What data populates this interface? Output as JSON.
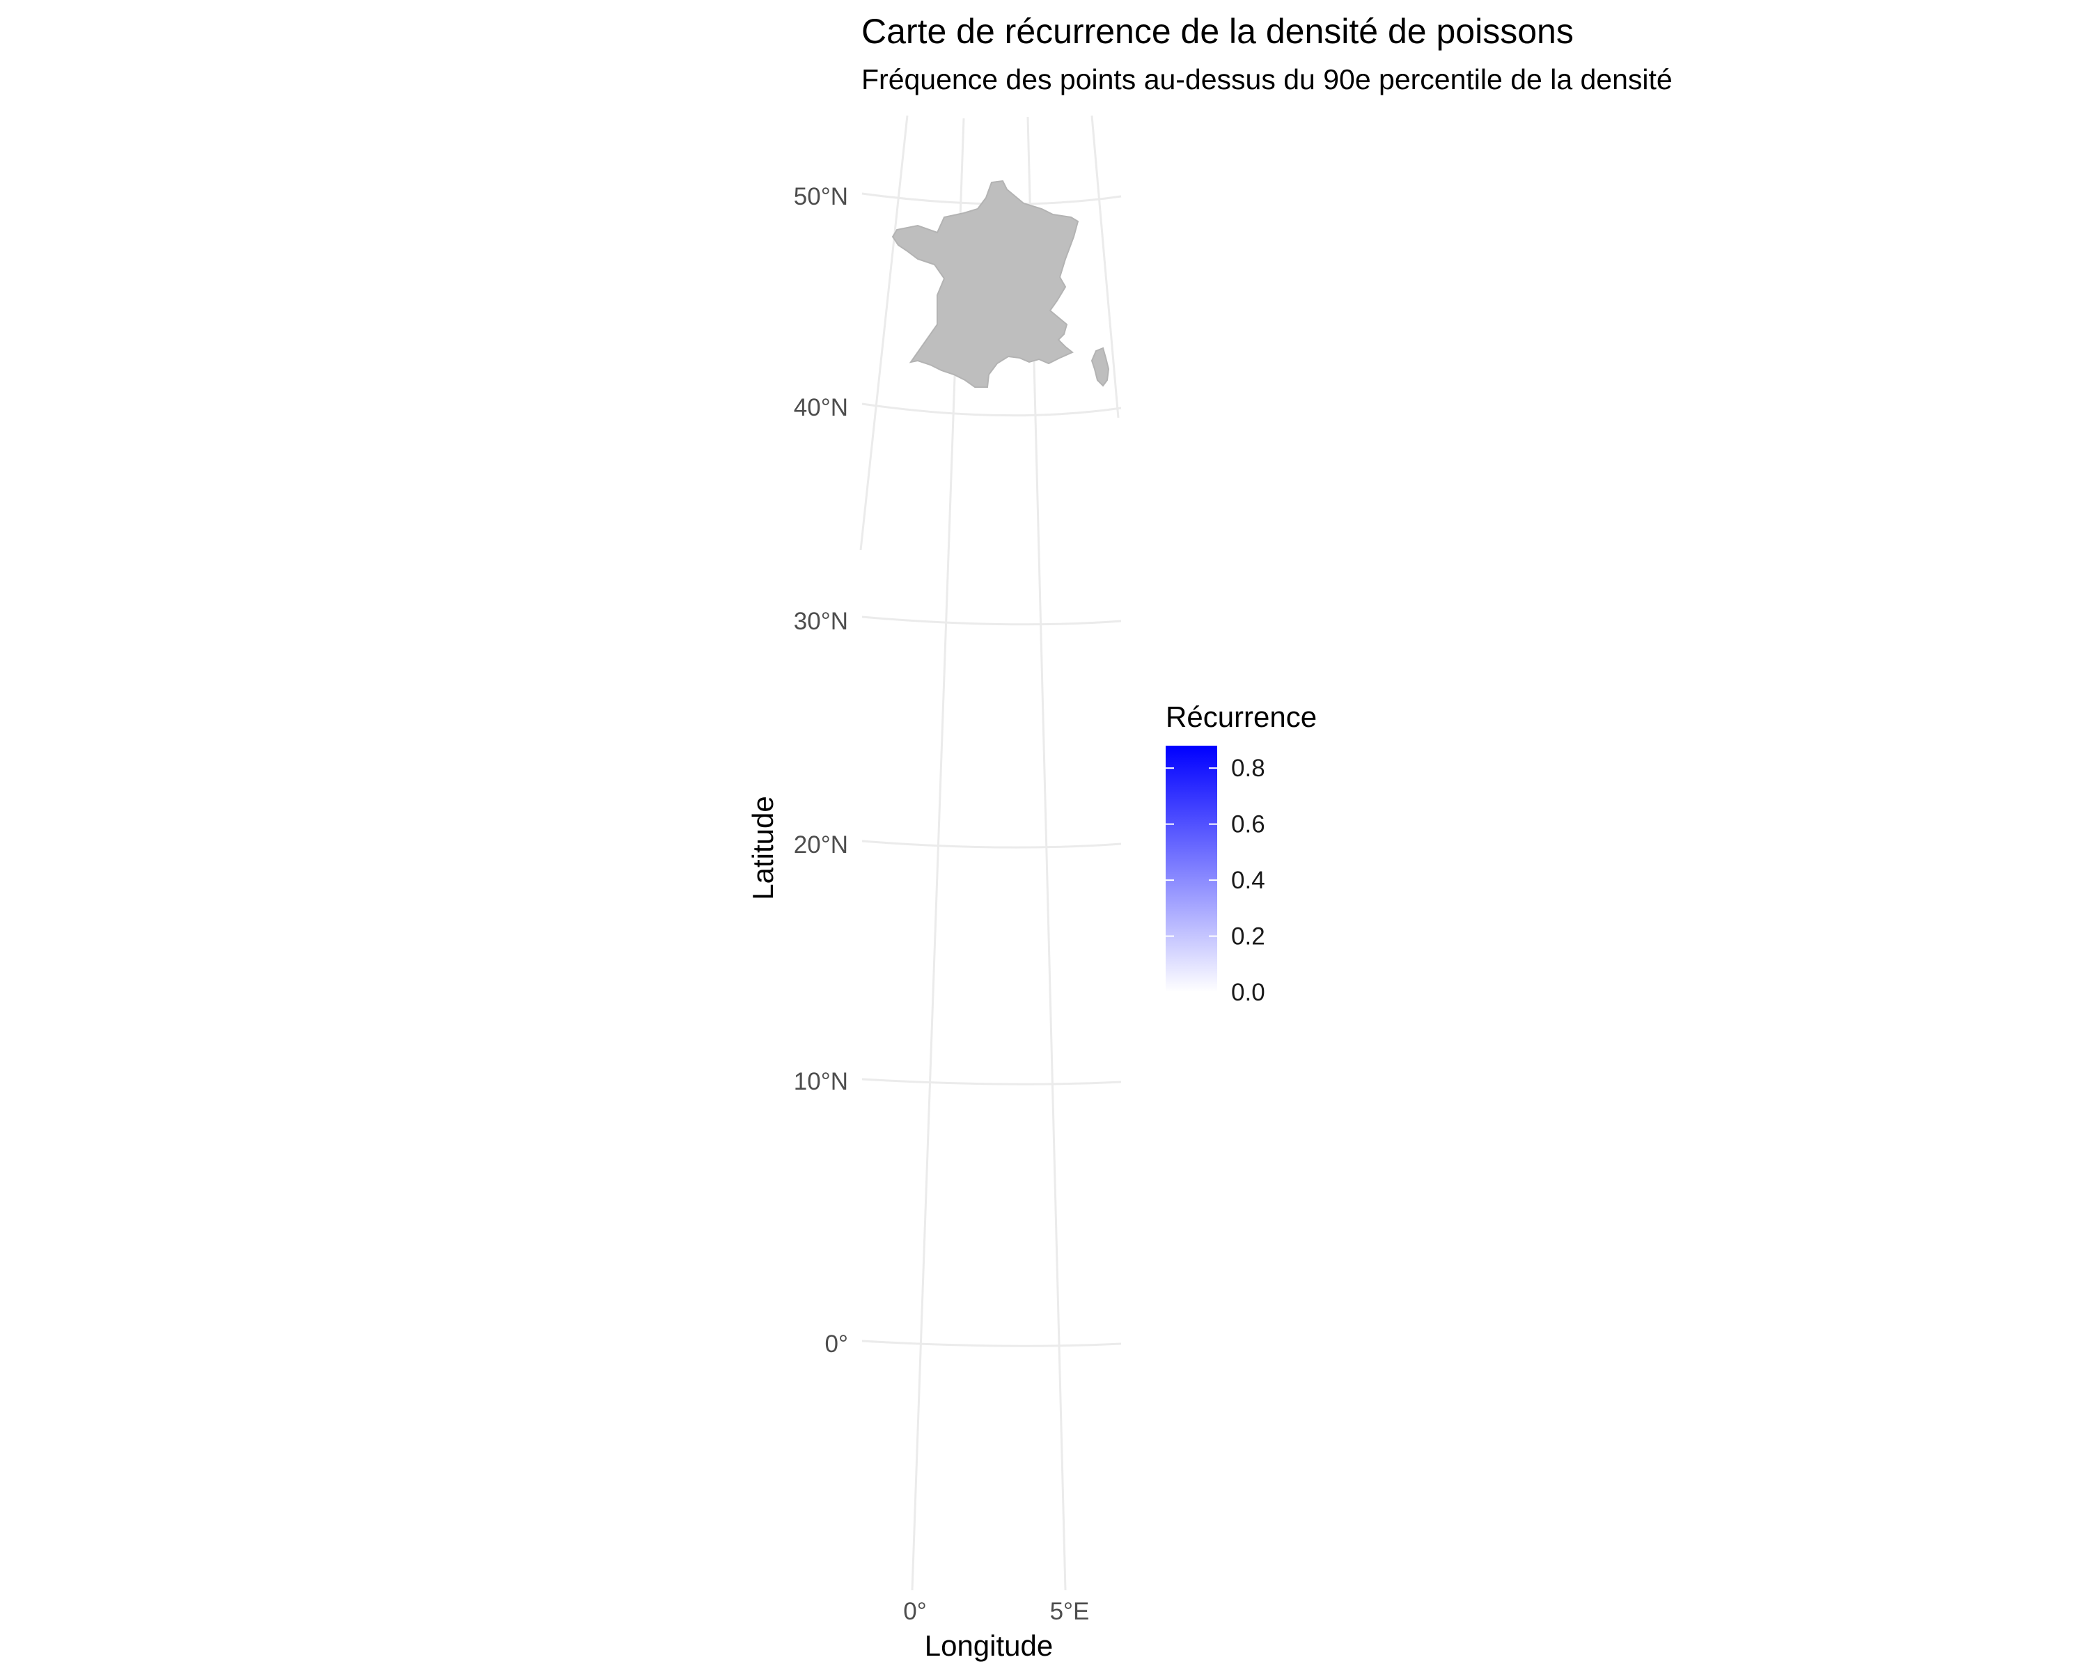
{
  "title": "Carte de récurrence de la densité de poissons",
  "subtitle": "Fréquence des points au-dessus du 90e percentile de la densité",
  "axes": {
    "x_title": "Longitude",
    "y_title": "Latitude",
    "x_ticks": [
      {
        "value": 0,
        "label": "0°"
      },
      {
        "value": 5,
        "label": "5°E"
      }
    ],
    "y_ticks": [
      {
        "value": 50,
        "label": "50°N"
      },
      {
        "value": 40,
        "label": "40°N"
      },
      {
        "value": 30,
        "label": "30°N"
      },
      {
        "value": 20,
        "label": "20°N"
      },
      {
        "value": 10,
        "label": "10°N"
      },
      {
        "value": 0,
        "label": "0°"
      }
    ]
  },
  "map": {
    "land_color": "#bebebe",
    "grid_color": "#ebebeb",
    "features": [
      "France métropolitaine",
      "Corse"
    ]
  },
  "legend": {
    "title": "Récurrence",
    "gradient_low": "#ffffff",
    "gradient_high": "#0000ff",
    "range": [
      0,
      0.88
    ],
    "labels": [
      "0.8",
      "0.6",
      "0.4",
      "0.2",
      "0.0"
    ],
    "values": [
      0.8,
      0.6,
      0.4,
      0.2,
      0.0
    ]
  }
}
